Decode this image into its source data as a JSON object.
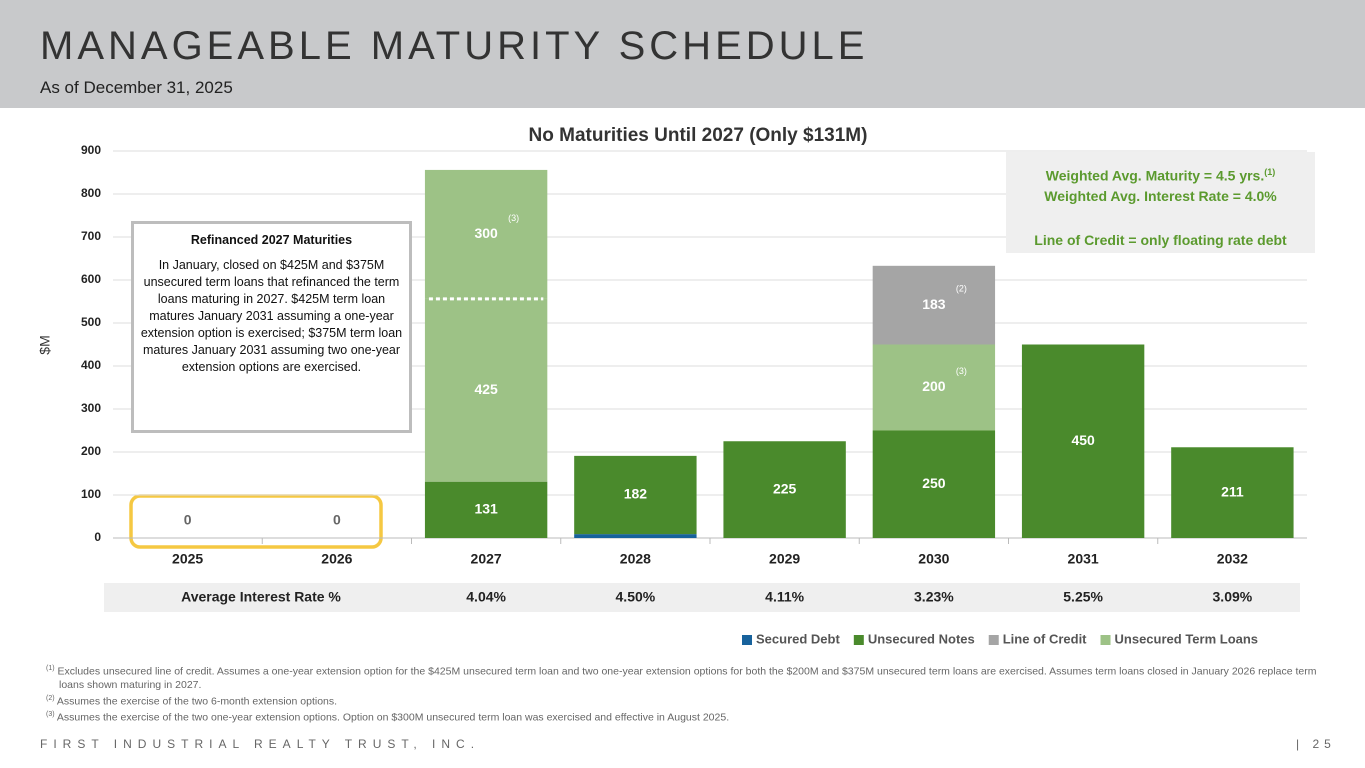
{
  "header": {
    "title": "MANAGEABLE MATURITY SCHEDULE",
    "subtitle": "As of December 31, 2025"
  },
  "chart_data": {
    "type": "stacked_bar",
    "title": "No Maturities Until 2027 (Only $131M)",
    "y_label": "$M",
    "categories": [
      "2025",
      "2026",
      "2027",
      "2028",
      "2029",
      "2030",
      "2031",
      "2032"
    ],
    "series": [
      {
        "name": "Secured Debt",
        "color": "#17629c",
        "values": [
          null,
          null,
          null,
          9,
          null,
          null,
          null,
          null
        ]
      },
      {
        "name": "Unsecured Notes",
        "color": "#4a8a2c",
        "values": [
          0,
          0,
          131,
          182,
          225,
          250,
          450,
          211
        ]
      },
      {
        "name": "Unsecured Term Loans",
        "color": "#9dc286",
        "values": [
          null,
          null,
          425,
          null,
          null,
          200,
          null,
          null
        ],
        "value_notes": [
          null,
          null,
          null,
          null,
          null,
          "(3)",
          null,
          null
        ]
      },
      {
        "color": "#9dc286",
        "values": [
          null,
          null,
          300,
          null,
          null,
          null,
          null,
          null
        ],
        "value_notes": [
          null,
          null,
          "(3)",
          null,
          null,
          null,
          null,
          null
        ]
      },
      {
        "name": "Line of Credit",
        "color": "#a5a5a5",
        "values": [
          null,
          null,
          null,
          null,
          null,
          183,
          null,
          null
        ],
        "value_notes": [
          null,
          null,
          null,
          null,
          null,
          "(2)",
          null,
          null
        ]
      }
    ],
    "legend_order": [
      0,
      1,
      4,
      2
    ],
    "legend": "bottom-right",
    "ylim": [
      0,
      900
    ],
    "yticks": [
      0,
      100,
      200,
      300,
      400,
      500,
      600,
      700,
      800,
      900
    ],
    "grid": true
  },
  "rate_table": {
    "label": "Average Interest Rate %",
    "values": [
      null,
      null,
      "4.04%",
      "4.50%",
      "4.11%",
      "3.23%",
      "5.25%",
      "3.09%"
    ]
  },
  "callout": {
    "title": "Refinanced 2027 Maturities",
    "text": "In January, closed on $425M and $375M unsecured term loans that refinanced the term loans maturing in 2027. $425M term loan matures January 2031 assuming a one-year extension option is exercised; $375M term loan matures January 2031 assuming two one-year extension options are exercised."
  },
  "stats_box": {
    "maturity": "Weighted Avg. Maturity = 4.5 yrs.",
    "maturity_note": "(1)",
    "rate": "Weighted Avg. Interest Rate = 4.0%",
    "credit": "Line of Credit = only floating rate debt"
  },
  "footnotes": [
    {
      "marker": "(1)",
      "text": "Excludes unsecured line of credit. Assumes a one-year extension option for the $425M unsecured term loan and two one-year extension options for both the $200M and $375M unsecured term loans are exercised. Assumes term loans closed in January 2026 replace term loans shown maturing in 2027."
    },
    {
      "marker": "(2)",
      "text": "Assumes the exercise of the two 6-month extension options."
    },
    {
      "marker": "(3)",
      "text": "Assumes the exercise of the two one-year extension options. Option on $300M unsecured term loan was exercised and effective in August 2025."
    }
  ],
  "footer": {
    "company": "FIRST INDUSTRIAL REALTY TRUST, INC.",
    "page": "| 25"
  }
}
